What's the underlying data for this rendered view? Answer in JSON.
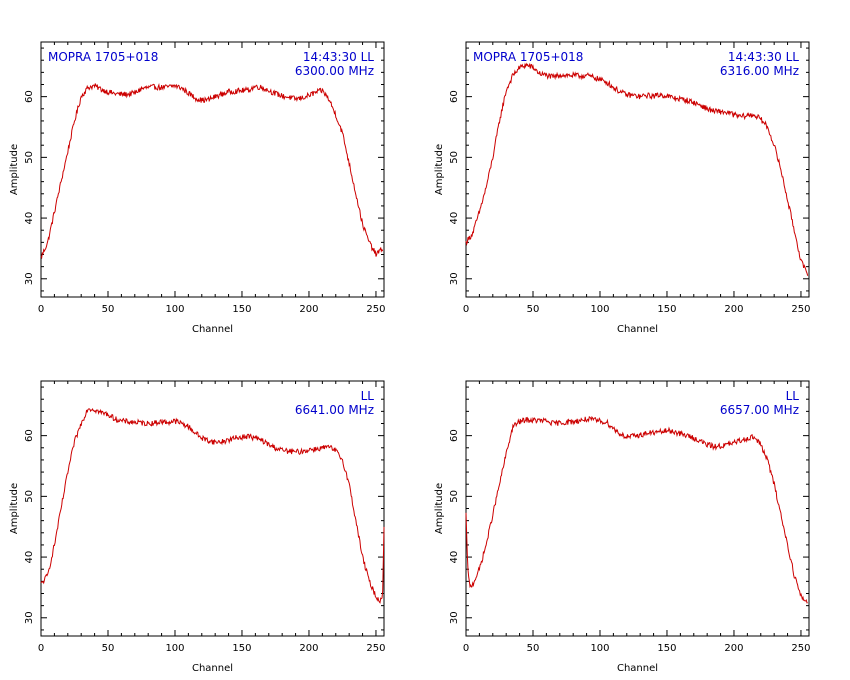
{
  "chart_data": [
    {
      "type": "line",
      "xlabel": "Channel",
      "ylabel": "Amplitude",
      "xlim": [
        0,
        256
      ],
      "ylim": [
        27,
        69
      ],
      "x_ticks": [
        0,
        50,
        100,
        150,
        200,
        250
      ],
      "y_ticks": [
        30,
        40,
        50,
        60
      ],
      "annotation_left": "MOPRA 1705+018",
      "annotation_right": [
        "14:43:30  LL",
        "6300.00  MHz"
      ],
      "line_color": "#cc0000",
      "text_color": "#0000cc",
      "series": [
        {
          "x": [
            0,
            5,
            10,
            15,
            20,
            25,
            30,
            35,
            40,
            45,
            50,
            55,
            60,
            65,
            70,
            75,
            80,
            85,
            90,
            95,
            100,
            105,
            110,
            115,
            120,
            125,
            130,
            135,
            140,
            145,
            150,
            155,
            160,
            165,
            170,
            175,
            180,
            185,
            190,
            195,
            200,
            205,
            210,
            215,
            220,
            225,
            230,
            235,
            240,
            245,
            250,
            255
          ],
          "values": [
            33.5,
            36,
            41,
            46,
            51,
            56,
            60,
            61.5,
            61.8,
            61.2,
            60.8,
            60.5,
            60.4,
            60.4,
            60.6,
            61.3,
            61.5,
            61.6,
            61.5,
            61.6,
            61.8,
            61.4,
            60.6,
            59.8,
            59.4,
            59.5,
            60,
            60.4,
            60.8,
            60.9,
            61,
            61.1,
            61.7,
            61.5,
            61,
            60.5,
            60.1,
            59.9,
            59.6,
            59.8,
            60.2,
            60.7,
            61,
            59.5,
            57,
            54,
            49,
            44,
            39,
            36,
            34,
            35
          ]
        }
      ]
    },
    {
      "type": "line",
      "xlabel": "Channel",
      "ylabel": "Amplitude",
      "xlim": [
        0,
        256
      ],
      "ylim": [
        27,
        69
      ],
      "x_ticks": [
        0,
        50,
        100,
        150,
        200,
        250
      ],
      "y_ticks": [
        30,
        40,
        50,
        60
      ],
      "annotation_left": "MOPRA 1705+018",
      "annotation_right": [
        "14:43:30  LL",
        "6316.00  MHz"
      ],
      "line_color": "#cc0000",
      "text_color": "#0000cc",
      "series": [
        {
          "x": [
            0,
            5,
            10,
            15,
            20,
            25,
            30,
            35,
            40,
            45,
            50,
            55,
            60,
            65,
            70,
            75,
            80,
            85,
            90,
            95,
            100,
            105,
            110,
            115,
            120,
            125,
            130,
            135,
            140,
            145,
            150,
            155,
            160,
            165,
            170,
            175,
            180,
            185,
            190,
            195,
            200,
            205,
            210,
            215,
            220,
            225,
            230,
            235,
            240,
            245,
            250,
            255
          ],
          "values": [
            36,
            37.5,
            41,
            45,
            50,
            56,
            61,
            63.5,
            64.8,
            65.2,
            64.8,
            63.8,
            63.5,
            63.2,
            63.6,
            63.5,
            63.5,
            63.4,
            63.5,
            63.2,
            62.8,
            62.4,
            61.5,
            60.8,
            60.3,
            60.2,
            60,
            60.2,
            60.1,
            60.3,
            60.1,
            59.8,
            59.6,
            59.4,
            59,
            58.6,
            58,
            57.6,
            57.5,
            57.4,
            57,
            56.7,
            56.9,
            57,
            56.3,
            55,
            52,
            48,
            43,
            38,
            33,
            30.5
          ]
        }
      ]
    },
    {
      "type": "line",
      "xlabel": "Channel",
      "ylabel": "Amplitude",
      "xlim": [
        0,
        256
      ],
      "ylim": [
        27,
        69
      ],
      "x_ticks": [
        0,
        50,
        100,
        150,
        200,
        250
      ],
      "y_ticks": [
        30,
        40,
        50,
        60
      ],
      "annotation_left": "",
      "annotation_right": [
        "LL",
        "6641.00  MHz"
      ],
      "line_color": "#cc0000",
      "text_color": "#0000cc",
      "series": [
        {
          "x": [
            0,
            5,
            10,
            15,
            20,
            25,
            30,
            35,
            40,
            45,
            50,
            55,
            60,
            65,
            70,
            75,
            80,
            85,
            90,
            95,
            100,
            105,
            110,
            115,
            120,
            125,
            130,
            135,
            140,
            145,
            150,
            155,
            160,
            165,
            170,
            175,
            180,
            185,
            190,
            195,
            200,
            205,
            210,
            215,
            220,
            225,
            230,
            235,
            240,
            245,
            250,
            253,
            255,
            256
          ],
          "values": [
            35.5,
            37,
            42,
            48,
            54,
            59,
            62,
            64.5,
            64.3,
            63.8,
            63.5,
            62.8,
            62.4,
            62.3,
            62.2,
            62.1,
            62,
            62.1,
            62.3,
            62.2,
            62.4,
            62,
            61.5,
            60.5,
            59.6,
            59.2,
            58.9,
            59,
            59.3,
            59.6,
            59.8,
            59.9,
            59.6,
            59.2,
            58.5,
            58,
            57.6,
            57.4,
            57.3,
            57.4,
            57.7,
            57.8,
            58,
            58.1,
            57.5,
            56,
            52,
            46,
            40,
            36,
            33.5,
            32.8,
            34,
            45
          ]
        }
      ]
    },
    {
      "type": "line",
      "xlabel": "Channel",
      "ylabel": "Amplitude",
      "xlim": [
        0,
        256
      ],
      "ylim": [
        27,
        69
      ],
      "x_ticks": [
        0,
        50,
        100,
        150,
        200,
        250
      ],
      "y_ticks": [
        30,
        40,
        50,
        60
      ],
      "annotation_left": "",
      "annotation_right": [
        "LL",
        "6657.00  MHz"
      ],
      "line_color": "#cc0000",
      "text_color": "#0000cc",
      "series": [
        {
          "x": [
            0,
            1,
            2,
            3,
            5,
            10,
            15,
            20,
            25,
            30,
            35,
            40,
            45,
            50,
            55,
            60,
            65,
            70,
            75,
            80,
            85,
            90,
            95,
            100,
            105,
            110,
            115,
            120,
            125,
            130,
            135,
            140,
            145,
            150,
            155,
            160,
            165,
            170,
            175,
            180,
            185,
            190,
            195,
            200,
            205,
            210,
            215,
            220,
            225,
            230,
            235,
            240,
            245,
            250,
            255
          ],
          "values": [
            47,
            40,
            36.5,
            35,
            35.5,
            38,
            42,
            47,
            52,
            57,
            61.5,
            62.3,
            62.6,
            62.5,
            62.5,
            62.4,
            62,
            62.1,
            62.2,
            62.3,
            62.5,
            62.7,
            62.6,
            62.4,
            62.2,
            61.2,
            60.3,
            59.8,
            59.9,
            60.1,
            60.4,
            60.5,
            60.6,
            60.8,
            60.7,
            60.3,
            60,
            59.6,
            59.1,
            58.5,
            58.2,
            58.3,
            58.5,
            58.8,
            59.2,
            59.6,
            59.8,
            58.5,
            56,
            52,
            47,
            42,
            37,
            33.5,
            32.5
          ]
        }
      ]
    }
  ]
}
